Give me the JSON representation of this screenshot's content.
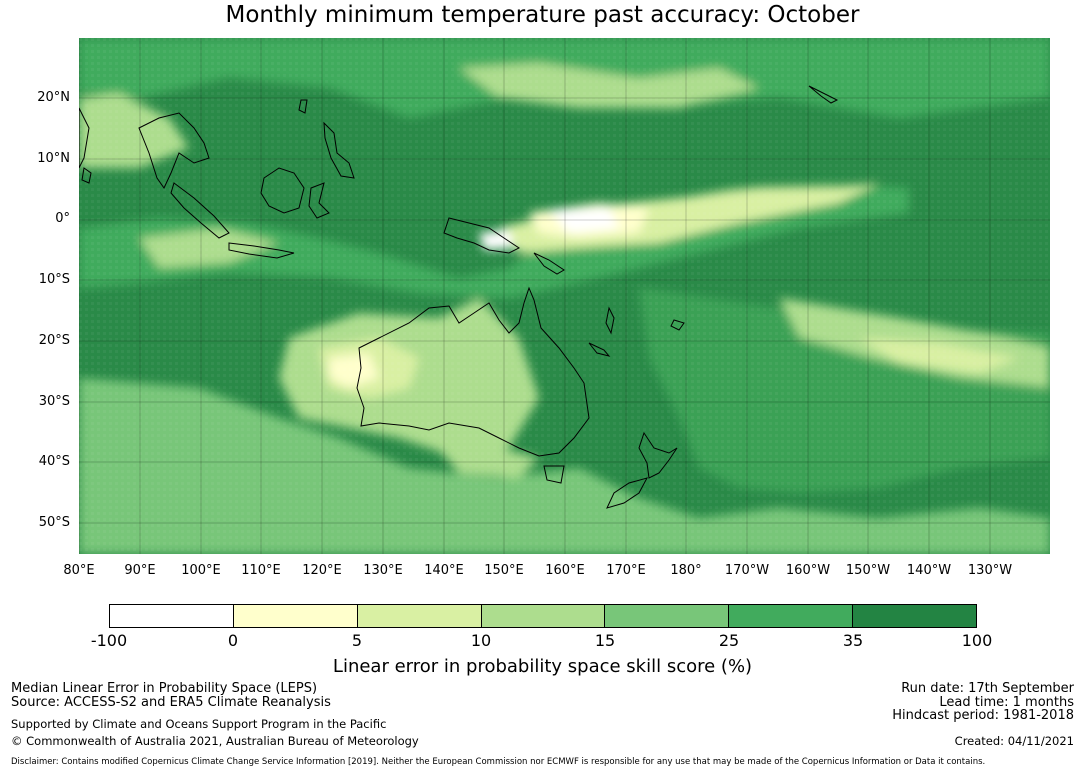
{
  "title": "Monthly minimum temperature past accuracy: October",
  "latitude_labels": [
    "20°N",
    "10°N",
    "0°",
    "10°S",
    "20°S",
    "30°S",
    "40°S",
    "50°S"
  ],
  "longitude_labels": [
    "80°E",
    "90°E",
    "100°E",
    "110°E",
    "120°E",
    "130°E",
    "140°E",
    "150°E",
    "160°E",
    "170°E",
    "180°",
    "170°W",
    "160°W",
    "150°W",
    "140°W",
    "130°W"
  ],
  "colorbar": {
    "ticks": [
      "-100",
      "0",
      "5",
      "10",
      "15",
      "25",
      "35",
      "100"
    ],
    "colors": [
      "#ffffff",
      "#ffffcc",
      "#d9f0a3",
      "#addd8e",
      "#78c679",
      "#41ab5d",
      "#238443"
    ],
    "label": "Linear error in probability space skill score (%)"
  },
  "footer": {
    "left_line1": "Median Linear Error in Probability Space (LEPS)",
    "left_line2": "Source: ACCESS-S2 and ERA5 Climate Reanalysis",
    "left_line3": "Supported by Climate and Oceans Support Program in the Pacific",
    "left_line4": "© Commonwealth of Australia 2021, Australian Bureau of Meteorology",
    "right_line1": "Run date: 17th September",
    "right_line2": "Lead time: 1 months",
    "right_line3": "Hindcast period: 1981-2018",
    "right_line4": "Created: 04/11/2021",
    "disclaimer": "Disclaimer: Contains modified Copernicus Climate Change Service Information [2019]. Neither the European Commission nor ECMWF is responsible for any use that may be made of the Copernicus Information or Data it contains."
  }
}
